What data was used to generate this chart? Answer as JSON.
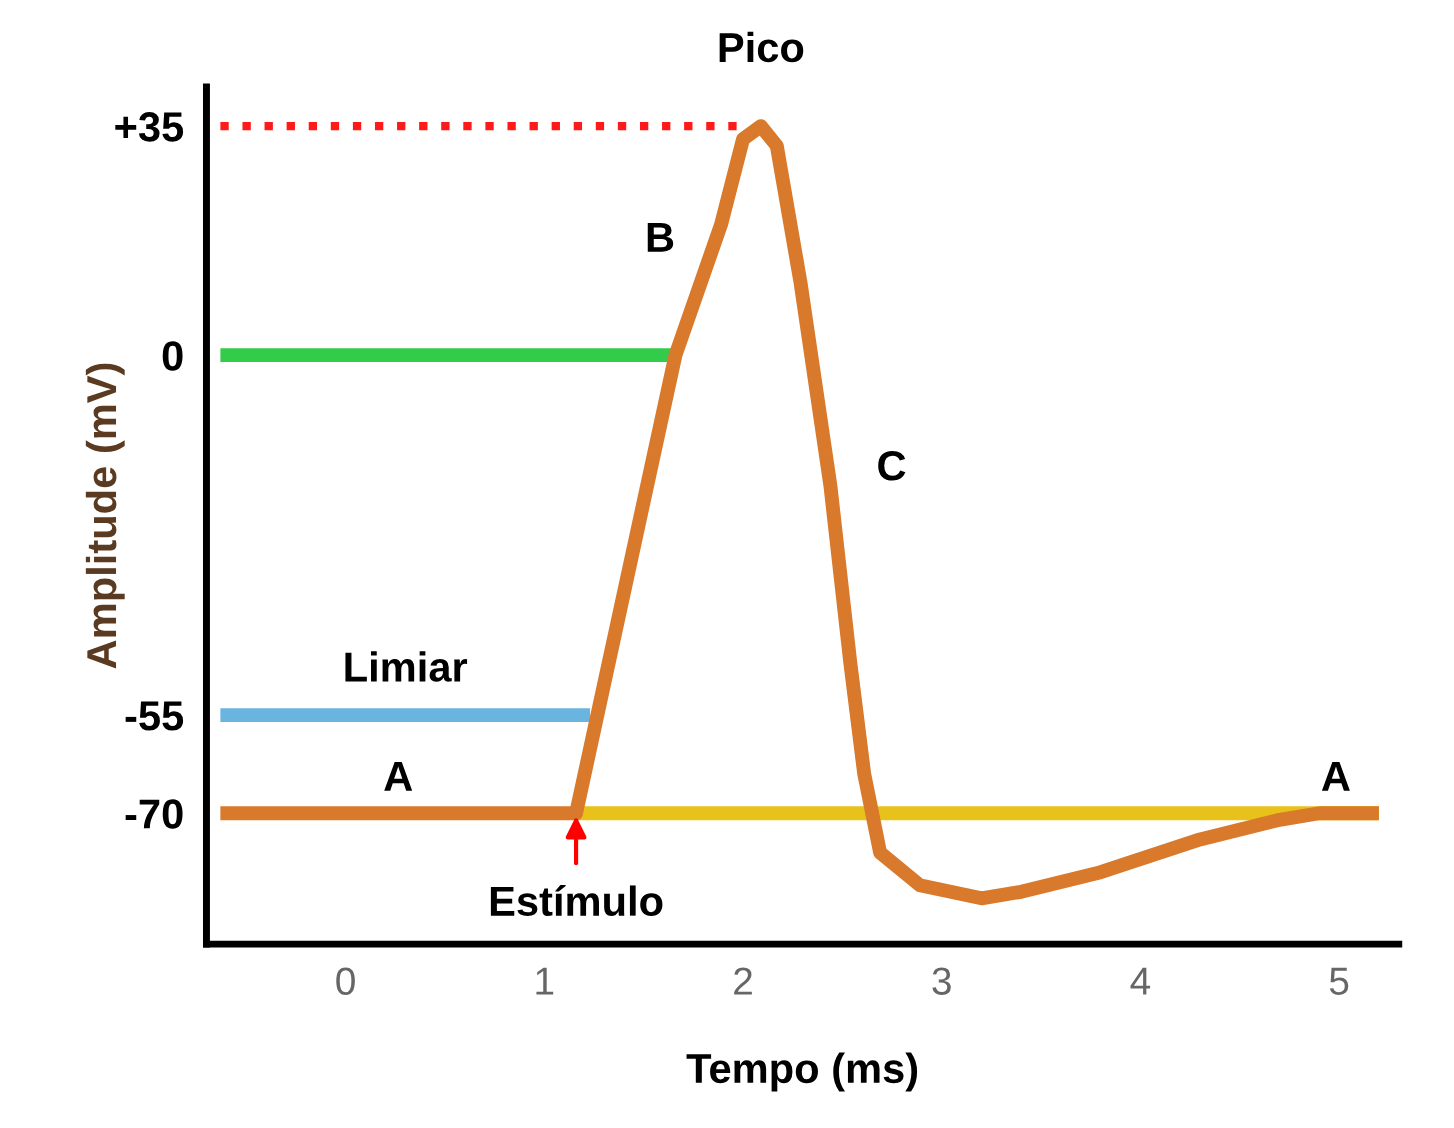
{
  "chart_data": {
    "type": "line",
    "xlabel": "Tempo (ms)",
    "ylabel": "Amplitude (mV)",
    "xlim": [
      -0.7,
      5.3
    ],
    "ylim": [
      -90,
      41
    ],
    "xticks": [
      0,
      1,
      2,
      3,
      4,
      5
    ],
    "yticks": [
      {
        "value": -70,
        "label": "-70"
      },
      {
        "value": -55,
        "label": "-55"
      },
      0,
      {
        "value": 35,
        "label": "+35"
      }
    ],
    "grid": false,
    "marker": "none",
    "series": [
      {
        "color": "#ff1a1a",
        "line_style": "dotted",
        "x": [
          -0.63,
          2.0
        ],
        "values": [
          35,
          35
        ]
      },
      {
        "color": "#33cc4a",
        "line_style": "solid",
        "x": [
          -0.63,
          1.66
        ],
        "values": [
          0,
          0
        ]
      },
      {
        "color": "#6ab4e0",
        "line_style": "solid",
        "x": [
          -0.63,
          1.23
        ],
        "values": [
          -55,
          -55
        ]
      },
      {
        "color": "#e8c21a",
        "line_style": "solid",
        "x": [
          1.16,
          5.2
        ],
        "values": [
          -70,
          -70
        ]
      },
      {
        "color": "#d9792b",
        "line_style": "solid",
        "x": [
          -0.63,
          1.16,
          1.66,
          1.89,
          2.0,
          2.09,
          2.17,
          2.29,
          2.44,
          2.54,
          2.61,
          2.69,
          2.89,
          3.2,
          3.4,
          3.8,
          4.3,
          4.7,
          4.9,
          5.2
        ],
        "values": [
          -70,
          -70,
          0,
          20,
          33,
          35,
          32,
          11,
          -20,
          -47,
          -64,
          -76,
          -81,
          -83,
          -82,
          -79,
          -74,
          -71,
          -70,
          -70
        ]
      }
    ],
    "annotations": [
      "Pico",
      "B",
      "C",
      "Limiar",
      "A",
      "A",
      {
        "text": "Estímulo",
        "x": 1.16,
        "y": -70
      }
    ]
  }
}
